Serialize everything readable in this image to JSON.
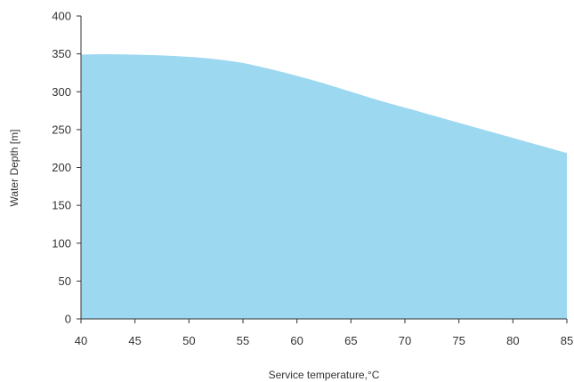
{
  "chart_data": {
    "type": "area",
    "title": "",
    "xlabel": "Service temperature,°C",
    "ylabel": "Water Depth [m]",
    "xlim": [
      40,
      85
    ],
    "ylim": [
      0,
      400
    ],
    "x_ticks": [
      40,
      45,
      50,
      55,
      60,
      65,
      70,
      75,
      80,
      85
    ],
    "y_ticks": [
      0,
      50,
      100,
      150,
      200,
      250,
      300,
      350,
      400
    ],
    "grid": false,
    "legend": "none",
    "fill_color": "#9dd8f1",
    "axis_color": "#333333",
    "series": [
      {
        "x": [
          40,
          42.5,
          45,
          47.5,
          50,
          52.5,
          55,
          57.5,
          60,
          62.5,
          65,
          67.5,
          70,
          72.5,
          75,
          77.5,
          80,
          82.5,
          85
        ],
        "values": [
          349,
          349.5,
          349,
          348,
          346,
          343,
          338,
          330,
          321,
          311,
          300,
          289,
          279,
          269,
          259,
          249,
          239,
          229,
          219
        ]
      }
    ]
  }
}
